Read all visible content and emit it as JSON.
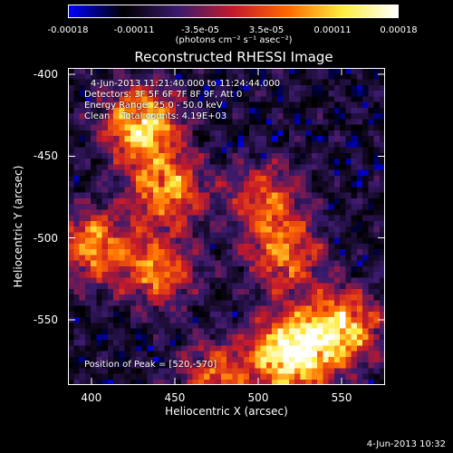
{
  "colorbar": {
    "ticks": [
      "-0.00018",
      "-0.00011",
      "-3.5e-05",
      "3.5e-05",
      "0.00011",
      "0.00018"
    ],
    "tick_values": [
      -0.00018,
      -0.00011,
      -3.5e-05,
      3.5e-05,
      0.00011,
      0.00018
    ],
    "unit_label": "(photons cm⁻² s⁻¹ asec⁻²)",
    "colors": [
      "#0000ff",
      "#000000",
      "#3a1a6e",
      "#c41a2a",
      "#ff6a00",
      "#ffee40",
      "#ffffff"
    ]
  },
  "chart_data": {
    "type": "heatmap",
    "title": "Reconstructed RHESSI Image",
    "xlabel": "Heliocentric X (arcsec)",
    "ylabel": "Heliocentric Y (arcsec)",
    "xlim": [
      386,
      576
    ],
    "ylim": [
      -590,
      -396
    ],
    "xticks": [
      400,
      450,
      500,
      550
    ],
    "yticks": [
      -400,
      -450,
      -500,
      -550
    ],
    "xtick_labels": [
      "400",
      "450",
      "500",
      "550"
    ],
    "ytick_labels": [
      "-400",
      "-450",
      "-500",
      "-550"
    ],
    "bright_regions": [
      {
        "x": 430,
        "y": -430,
        "level": 0.8
      },
      {
        "x": 445,
        "y": -470,
        "level": 0.65
      },
      {
        "x": 400,
        "y": -505,
        "level": 0.6
      },
      {
        "x": 440,
        "y": -520,
        "level": 0.55
      },
      {
        "x": 505,
        "y": -475,
        "level": 0.45
      },
      {
        "x": 515,
        "y": -510,
        "level": 0.55
      },
      {
        "x": 520,
        "y": -570,
        "level": 1.0
      },
      {
        "x": 550,
        "y": -555,
        "level": 0.75
      },
      {
        "x": 475,
        "y": -585,
        "level": 0.5
      }
    ],
    "annotations": {
      "time": "4-Jun-2013 11:21:40.000 to 11:24:44.000",
      "detectors": "Detectors: 3F 5F 6F 7F 8F 9F, Att 0",
      "energy": "Energy Range: 25.0 - 50.0 keV",
      "clean": "Clean    Total counts: 4.19E+03",
      "peak": "Position of Peak = [520,-570]"
    }
  },
  "footer": {
    "timestamp": "4-Jun-2013 10:32"
  }
}
